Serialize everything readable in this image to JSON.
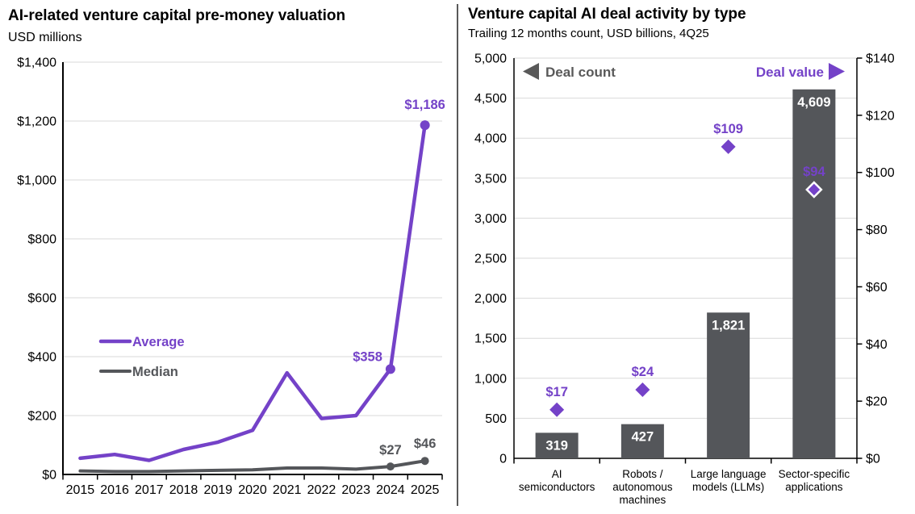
{
  "colors": {
    "purple": "#7442C8",
    "dark_gray": "#54565A",
    "legend_gray": "#595959",
    "gridline": "#D9D9D9",
    "axis": "#000000",
    "white_label": "#FFFFFF",
    "background": "#FFFFFF"
  },
  "chart_data": [
    {
      "type": "line",
      "title": "AI-related venture capital pre-money valuation",
      "subtitle": "USD millions",
      "x_labels": [
        "2015",
        "2016",
        "2017",
        "2018",
        "2019",
        "2020",
        "2021",
        "2022",
        "2023",
        "2024",
        "2025"
      ],
      "ylim": [
        0,
        1400
      ],
      "ytick_step": 200,
      "ytick_labels": [
        "$0",
        "$200",
        "$400",
        "$600",
        "$800",
        "$1,000",
        "$1,200",
        "$1,400"
      ],
      "grid": true,
      "legend_position": "inside-left",
      "series": [
        {
          "name": "Average",
          "values": [
            55,
            68,
            48,
            85,
            110,
            150,
            345,
            190,
            200,
            358,
            1186
          ],
          "point_labels": [
            {
              "index": 9,
              "text": "$358"
            },
            {
              "index": 10,
              "text": "$1,186"
            }
          ]
        },
        {
          "name": "Median",
          "values": [
            12,
            10,
            10,
            12,
            14,
            16,
            22,
            22,
            18,
            27,
            46
          ],
          "point_labels": [
            {
              "index": 9,
              "text": "$27"
            },
            {
              "index": 10,
              "text": "$46"
            }
          ]
        }
      ]
    },
    {
      "type": "bar+scatter",
      "title": "Venture capital AI deal activity by type",
      "subtitle": "Trailing 12 months count, USD billions, 4Q25",
      "categories": [
        [
          "AI",
          "semiconductors"
        ],
        [
          "Robots /",
          "autonomous",
          "machines"
        ],
        [
          "Large language",
          "models (LLMs)"
        ],
        [
          "Sector-specific",
          "applications"
        ]
      ],
      "left_axis": {
        "min": 0,
        "max": 5000,
        "step": 500,
        "tick_labels": [
          "0",
          "500",
          "1,000",
          "1,500",
          "2,000",
          "2,500",
          "3,000",
          "3,500",
          "4,000",
          "4,500",
          "5,000"
        ]
      },
      "right_axis": {
        "min": 0,
        "max": 140,
        "step": 20,
        "tick_labels": [
          "$0",
          "$20",
          "$40",
          "$60",
          "$80",
          "$100",
          "$120",
          "$140"
        ]
      },
      "bars": {
        "name": "Deal count",
        "values": [
          319,
          427,
          1821,
          4609
        ],
        "labels": [
          "319",
          "427",
          "1,821",
          "4,609"
        ]
      },
      "points": {
        "name": "Deal value",
        "values": [
          17,
          24,
          109,
          94
        ],
        "labels": [
          "$17",
          "$24",
          "$109",
          "$94"
        ],
        "white_ring_on_last": true
      },
      "grid": true,
      "legend_position": "inside-top"
    }
  ]
}
